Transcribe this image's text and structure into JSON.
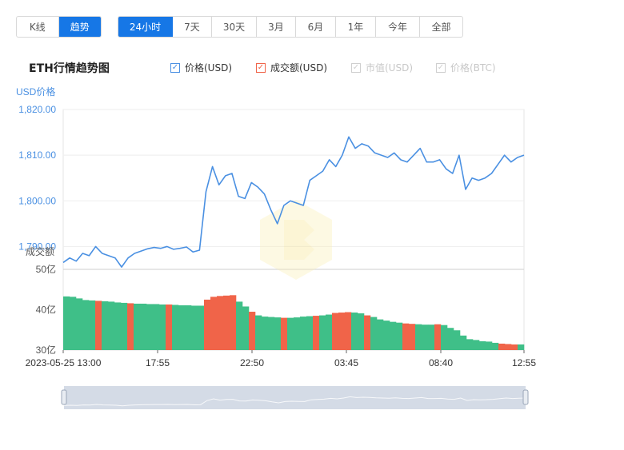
{
  "toolbar": {
    "modes": [
      {
        "label": "K线",
        "active": false
      },
      {
        "label": "趋势",
        "active": true
      }
    ],
    "ranges": [
      {
        "label": "24小时",
        "active": true
      },
      {
        "label": "7天",
        "active": false
      },
      {
        "label": "30天",
        "active": false
      },
      {
        "label": "3月",
        "active": false
      },
      {
        "label": "6月",
        "active": false
      },
      {
        "label": "1年",
        "active": false
      },
      {
        "label": "今年",
        "active": false
      },
      {
        "label": "全部",
        "active": false
      }
    ]
  },
  "legend": [
    {
      "label": "价格(USD)",
      "checked": true,
      "color": "#4a90e2"
    },
    {
      "label": "成交额(USD)",
      "checked": true,
      "color": "#f06449"
    },
    {
      "label": "市值(USD)",
      "checked": false,
      "color": "#cfcfcf"
    },
    {
      "label": "价格(BTC)",
      "checked": false,
      "color": "#cfcfcf"
    }
  ],
  "colors": {
    "price_line": "#4a90e2",
    "volume_up": "#3fbf88",
    "volume_down": "#f06449",
    "axis_text": "#4a90e2",
    "navigator_fill": "#d4dbe6"
  },
  "chart_data": {
    "type": "line",
    "title": "ETH行情趋势图",
    "price_axis": {
      "label": "USD价格",
      "ylim": [
        1785,
        1820
      ],
      "ticks": [
        "1,820.00",
        "1,810.00",
        "1,800.00",
        "1,790.00"
      ]
    },
    "volume_axis": {
      "label": "成交额",
      "ylim": [
        30,
        50
      ],
      "ticks": [
        "50亿",
        "40亿",
        "30亿"
      ],
      "unit": "亿"
    },
    "x_ticks": [
      "2023-05-25 13:00",
      "17:55",
      "22:50",
      "03:45",
      "08:40",
      "12:55"
    ],
    "series": [
      {
        "name": "价格(USD)",
        "type": "line",
        "values": [
          1786.5,
          1787.5,
          1786.8,
          1788.5,
          1788.0,
          1790.0,
          1788.5,
          1788.0,
          1787.5,
          1785.5,
          1787.5,
          1788.5,
          1789.0,
          1789.5,
          1789.8,
          1789.6,
          1790.0,
          1789.4,
          1789.6,
          1789.9,
          1788.8,
          1789.2,
          1802.0,
          1807.5,
          1803.5,
          1805.5,
          1806.0,
          1801.0,
          1800.5,
          1804.0,
          1803.0,
          1801.5,
          1798.0,
          1795.0,
          1799.0,
          1800.0,
          1799.5,
          1799.0,
          1804.5,
          1805.5,
          1806.5,
          1809.0,
          1807.5,
          1810.0,
          1814.0,
          1811.5,
          1812.5,
          1812.0,
          1810.5,
          1810.0,
          1809.5,
          1810.5,
          1809.0,
          1808.5,
          1810.0,
          1811.5,
          1808.5,
          1808.5,
          1809.0,
          1807.0,
          1806.0,
          1810.0,
          1802.5,
          1805.0,
          1804.5,
          1805.0,
          1806.0,
          1808.0,
          1810.0,
          1808.5,
          1809.5,
          1810.0
        ]
      },
      {
        "name": "成交额(USD)",
        "type": "bar",
        "values": [
          43.3,
          43.2,
          42.8,
          42.4,
          42.3,
          42.2,
          42.1,
          42.0,
          41.8,
          41.7,
          41.6,
          41.5,
          41.5,
          41.4,
          41.4,
          41.3,
          41.3,
          41.2,
          41.1,
          41.1,
          41.0,
          41.0,
          42.5,
          43.2,
          43.4,
          43.5,
          43.6,
          42.0,
          40.8,
          39.5,
          38.6,
          38.3,
          38.2,
          38.1,
          38.0,
          38.0,
          38.1,
          38.3,
          38.4,
          38.5,
          38.6,
          38.8,
          39.2,
          39.3,
          39.4,
          39.3,
          39.1,
          38.6,
          38.2,
          37.6,
          37.3,
          37.0,
          36.8,
          36.6,
          36.5,
          36.4,
          36.3,
          36.3,
          36.4,
          36.2,
          35.5,
          34.9,
          33.6,
          32.7,
          32.5,
          32.2,
          32.1,
          31.8,
          31.6,
          31.5,
          31.4,
          31.4
        ],
        "down": [
          false,
          false,
          false,
          false,
          false,
          true,
          false,
          false,
          false,
          false,
          true,
          false,
          false,
          false,
          false,
          false,
          true,
          false,
          false,
          false,
          false,
          false,
          true,
          true,
          true,
          true,
          true,
          false,
          false,
          true,
          false,
          false,
          false,
          false,
          true,
          false,
          false,
          false,
          false,
          true,
          false,
          false,
          true,
          true,
          true,
          false,
          false,
          true,
          false,
          false,
          false,
          false,
          false,
          true,
          true,
          false,
          false,
          false,
          true,
          false,
          false,
          false,
          false,
          false,
          false,
          false,
          false,
          false,
          true,
          true,
          true,
          false
        ]
      }
    ],
    "grid": true,
    "watermark": "logo"
  }
}
